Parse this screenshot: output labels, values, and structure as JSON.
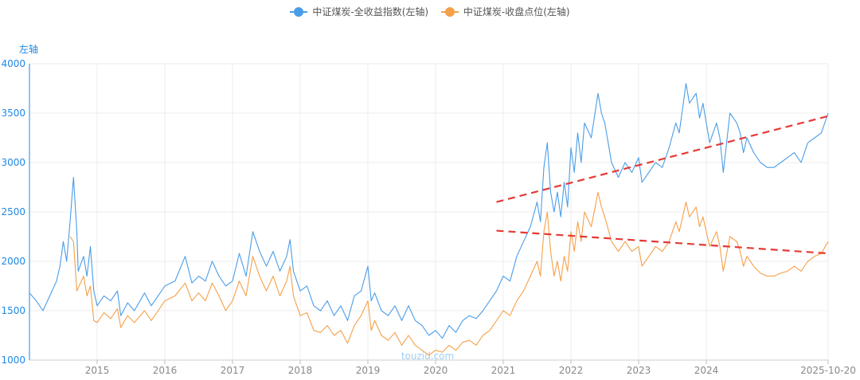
{
  "legend": {
    "series1": "中证煤炭-全收益指数(左轴)",
    "series2": "中证煤炭-收盘点位(左轴)"
  },
  "axis_unit": "左轴",
  "watermark": "touzid.com",
  "colors": {
    "series1": "#4a9de8",
    "series2": "#f5a04a",
    "trend": "#e53935",
    "axis": "#1e88e5"
  },
  "chart_data": {
    "type": "line",
    "x_range": [
      2014.0,
      2025.8
    ],
    "ylim": [
      1000,
      4000
    ],
    "y_ticks": [
      1000,
      1500,
      2000,
      2500,
      3000,
      3500,
      4000
    ],
    "x_ticks": [
      {
        "label": "2015",
        "x": 2015
      },
      {
        "label": "2016",
        "x": 2016
      },
      {
        "label": "2017",
        "x": 2017
      },
      {
        "label": "2018",
        "x": 2018
      },
      {
        "label": "2019",
        "x": 2019
      },
      {
        "label": "2020",
        "x": 2020
      },
      {
        "label": "2021",
        "x": 2021
      },
      {
        "label": "2022",
        "x": 2022
      },
      {
        "label": "2023",
        "x": 2023
      },
      {
        "label": "2024",
        "x": 2024
      },
      {
        "label": "2025-10-20",
        "x": 2025.8
      }
    ],
    "grid": true,
    "legend_position": "top-center",
    "series": [
      {
        "name": "中证煤炭-全收益指数(左轴)",
        "color": "#4a9de8",
        "points": [
          [
            2014.0,
            1680
          ],
          [
            2014.1,
            1600
          ],
          [
            2014.2,
            1500
          ],
          [
            2014.3,
            1650
          ],
          [
            2014.4,
            1800
          ],
          [
            2014.45,
            1950
          ],
          [
            2014.5,
            2200
          ],
          [
            2014.55,
            2000
          ],
          [
            2014.6,
            2400
          ],
          [
            2014.65,
            2850
          ],
          [
            2014.7,
            2300
          ],
          [
            2014.72,
            1900
          ],
          [
            2014.8,
            2050
          ],
          [
            2014.85,
            1850
          ],
          [
            2014.9,
            2150
          ],
          [
            2014.95,
            1700
          ],
          [
            2015.0,
            1550
          ],
          [
            2015.1,
            1650
          ],
          [
            2015.2,
            1600
          ],
          [
            2015.3,
            1700
          ],
          [
            2015.35,
            1450
          ],
          [
            2015.45,
            1580
          ],
          [
            2015.55,
            1500
          ],
          [
            2015.7,
            1680
          ],
          [
            2015.8,
            1550
          ],
          [
            2015.9,
            1650
          ],
          [
            2016.0,
            1750
          ],
          [
            2016.15,
            1800
          ],
          [
            2016.3,
            2050
          ],
          [
            2016.4,
            1780
          ],
          [
            2016.5,
            1850
          ],
          [
            2016.6,
            1800
          ],
          [
            2016.7,
            2000
          ],
          [
            2016.8,
            1850
          ],
          [
            2016.9,
            1750
          ],
          [
            2017.0,
            1800
          ],
          [
            2017.1,
            2080
          ],
          [
            2017.2,
            1850
          ],
          [
            2017.3,
            2300
          ],
          [
            2017.4,
            2100
          ],
          [
            2017.5,
            1950
          ],
          [
            2017.6,
            2100
          ],
          [
            2017.7,
            1900
          ],
          [
            2017.8,
            2050
          ],
          [
            2017.85,
            2220
          ],
          [
            2017.9,
            1900
          ],
          [
            2018.0,
            1700
          ],
          [
            2018.1,
            1750
          ],
          [
            2018.2,
            1550
          ],
          [
            2018.3,
            1500
          ],
          [
            2018.4,
            1600
          ],
          [
            2018.5,
            1450
          ],
          [
            2018.6,
            1550
          ],
          [
            2018.7,
            1400
          ],
          [
            2018.8,
            1650
          ],
          [
            2018.9,
            1700
          ],
          [
            2019.0,
            1950
          ],
          [
            2019.05,
            1600
          ],
          [
            2019.1,
            1680
          ],
          [
            2019.2,
            1500
          ],
          [
            2019.3,
            1450
          ],
          [
            2019.4,
            1550
          ],
          [
            2019.5,
            1400
          ],
          [
            2019.6,
            1550
          ],
          [
            2019.7,
            1400
          ],
          [
            2019.8,
            1350
          ],
          [
            2019.9,
            1250
          ],
          [
            2020.0,
            1300
          ],
          [
            2020.1,
            1220
          ],
          [
            2020.2,
            1350
          ],
          [
            2020.3,
            1280
          ],
          [
            2020.4,
            1400
          ],
          [
            2020.5,
            1450
          ],
          [
            2020.6,
            1420
          ],
          [
            2020.7,
            1500
          ],
          [
            2020.8,
            1600
          ],
          [
            2020.9,
            1700
          ],
          [
            2021.0,
            1850
          ],
          [
            2021.1,
            1800
          ],
          [
            2021.2,
            2050
          ],
          [
            2021.3,
            2200
          ],
          [
            2021.4,
            2350
          ],
          [
            2021.5,
            2600
          ],
          [
            2021.55,
            2400
          ],
          [
            2021.6,
            2950
          ],
          [
            2021.65,
            3200
          ],
          [
            2021.7,
            2700
          ],
          [
            2021.75,
            2500
          ],
          [
            2021.8,
            2700
          ],
          [
            2021.85,
            2450
          ],
          [
            2021.9,
            2800
          ],
          [
            2021.95,
            2550
          ],
          [
            2022.0,
            3150
          ],
          [
            2022.05,
            2900
          ],
          [
            2022.1,
            3300
          ],
          [
            2022.15,
            3000
          ],
          [
            2022.2,
            3400
          ],
          [
            2022.3,
            3250
          ],
          [
            2022.4,
            3700
          ],
          [
            2022.45,
            3500
          ],
          [
            2022.5,
            3400
          ],
          [
            2022.6,
            3000
          ],
          [
            2022.7,
            2850
          ],
          [
            2022.8,
            3000
          ],
          [
            2022.9,
            2900
          ],
          [
            2023.0,
            3050
          ],
          [
            2023.05,
            2800
          ],
          [
            2023.15,
            2900
          ],
          [
            2023.25,
            3000
          ],
          [
            2023.35,
            2950
          ],
          [
            2023.45,
            3150
          ],
          [
            2023.55,
            3400
          ],
          [
            2023.6,
            3300
          ],
          [
            2023.7,
            3800
          ],
          [
            2023.75,
            3600
          ],
          [
            2023.85,
            3700
          ],
          [
            2023.9,
            3450
          ],
          [
            2023.95,
            3600
          ],
          [
            2024.05,
            3200
          ],
          [
            2024.15,
            3400
          ],
          [
            2024.2,
            3250
          ],
          [
            2024.25,
            2900
          ],
          [
            2024.35,
            3500
          ],
          [
            2024.45,
            3400
          ],
          [
            2024.5,
            3300
          ],
          [
            2024.55,
            3100
          ],
          [
            2024.6,
            3250
          ],
          [
            2024.7,
            3100
          ],
          [
            2024.8,
            3000
          ],
          [
            2024.9,
            2950
          ],
          [
            2025.0,
            2950
          ],
          [
            2025.1,
            3000
          ],
          [
            2025.2,
            3050
          ],
          [
            2025.3,
            3100
          ],
          [
            2025.4,
            3000
          ],
          [
            2025.5,
            3200
          ],
          [
            2025.6,
            3250
          ],
          [
            2025.7,
            3300
          ],
          [
            2025.8,
            3500
          ]
        ]
      },
      {
        "name": "中证煤炭-收盘点位(左轴)",
        "color": "#f5a04a",
        "points": [
          [
            2014.6,
            2250
          ],
          [
            2014.65,
            2200
          ],
          [
            2014.7,
            1700
          ],
          [
            2014.8,
            1850
          ],
          [
            2014.85,
            1650
          ],
          [
            2014.9,
            1750
          ],
          [
            2014.95,
            1400
          ],
          [
            2015.0,
            1380
          ],
          [
            2015.1,
            1480
          ],
          [
            2015.2,
            1420
          ],
          [
            2015.3,
            1520
          ],
          [
            2015.35,
            1330
          ],
          [
            2015.45,
            1450
          ],
          [
            2015.55,
            1380
          ],
          [
            2015.7,
            1500
          ],
          [
            2015.8,
            1400
          ],
          [
            2015.9,
            1500
          ],
          [
            2016.0,
            1600
          ],
          [
            2016.15,
            1650
          ],
          [
            2016.3,
            1780
          ],
          [
            2016.4,
            1600
          ],
          [
            2016.5,
            1680
          ],
          [
            2016.6,
            1600
          ],
          [
            2016.7,
            1780
          ],
          [
            2016.8,
            1650
          ],
          [
            2016.9,
            1500
          ],
          [
            2017.0,
            1600
          ],
          [
            2017.1,
            1800
          ],
          [
            2017.2,
            1650
          ],
          [
            2017.3,
            2050
          ],
          [
            2017.4,
            1850
          ],
          [
            2017.5,
            1700
          ],
          [
            2017.6,
            1850
          ],
          [
            2017.7,
            1650
          ],
          [
            2017.8,
            1800
          ],
          [
            2017.85,
            1950
          ],
          [
            2017.9,
            1650
          ],
          [
            2018.0,
            1450
          ],
          [
            2018.1,
            1480
          ],
          [
            2018.2,
            1300
          ],
          [
            2018.3,
            1280
          ],
          [
            2018.4,
            1350
          ],
          [
            2018.5,
            1250
          ],
          [
            2018.6,
            1300
          ],
          [
            2018.7,
            1170
          ],
          [
            2018.8,
            1350
          ],
          [
            2018.9,
            1450
          ],
          [
            2019.0,
            1600
          ],
          [
            2019.05,
            1300
          ],
          [
            2019.1,
            1400
          ],
          [
            2019.2,
            1250
          ],
          [
            2019.3,
            1200
          ],
          [
            2019.4,
            1280
          ],
          [
            2019.5,
            1150
          ],
          [
            2019.6,
            1250
          ],
          [
            2019.7,
            1150
          ],
          [
            2019.8,
            1100
          ],
          [
            2019.9,
            1050
          ],
          [
            2020.0,
            1100
          ],
          [
            2020.1,
            1080
          ],
          [
            2020.2,
            1150
          ],
          [
            2020.3,
            1100
          ],
          [
            2020.4,
            1180
          ],
          [
            2020.5,
            1200
          ],
          [
            2020.6,
            1150
          ],
          [
            2020.7,
            1250
          ],
          [
            2020.8,
            1300
          ],
          [
            2020.9,
            1400
          ],
          [
            2021.0,
            1500
          ],
          [
            2021.1,
            1450
          ],
          [
            2021.2,
            1600
          ],
          [
            2021.3,
            1700
          ],
          [
            2021.4,
            1850
          ],
          [
            2021.5,
            2000
          ],
          [
            2021.55,
            1850
          ],
          [
            2021.6,
            2300
          ],
          [
            2021.65,
            2500
          ],
          [
            2021.7,
            2100
          ],
          [
            2021.75,
            1850
          ],
          [
            2021.8,
            2000
          ],
          [
            2021.85,
            1800
          ],
          [
            2021.9,
            2050
          ],
          [
            2021.95,
            1900
          ],
          [
            2022.0,
            2300
          ],
          [
            2022.05,
            2100
          ],
          [
            2022.1,
            2400
          ],
          [
            2022.15,
            2200
          ],
          [
            2022.2,
            2500
          ],
          [
            2022.3,
            2350
          ],
          [
            2022.4,
            2700
          ],
          [
            2022.45,
            2550
          ],
          [
            2022.5,
            2450
          ],
          [
            2022.6,
            2200
          ],
          [
            2022.7,
            2100
          ],
          [
            2022.8,
            2200
          ],
          [
            2022.9,
            2100
          ],
          [
            2023.0,
            2150
          ],
          [
            2023.05,
            1950
          ],
          [
            2023.15,
            2050
          ],
          [
            2023.25,
            2150
          ],
          [
            2023.35,
            2100
          ],
          [
            2023.45,
            2200
          ],
          [
            2023.55,
            2400
          ],
          [
            2023.6,
            2300
          ],
          [
            2023.7,
            2600
          ],
          [
            2023.75,
            2450
          ],
          [
            2023.85,
            2550
          ],
          [
            2023.9,
            2350
          ],
          [
            2023.95,
            2450
          ],
          [
            2024.05,
            2150
          ],
          [
            2024.15,
            2300
          ],
          [
            2024.2,
            2150
          ],
          [
            2024.25,
            1900
          ],
          [
            2024.35,
            2250
          ],
          [
            2024.45,
            2200
          ],
          [
            2024.5,
            2100
          ],
          [
            2024.55,
            1950
          ],
          [
            2024.6,
            2050
          ],
          [
            2024.7,
            1950
          ],
          [
            2024.8,
            1880
          ],
          [
            2024.9,
            1850
          ],
          [
            2025.0,
            1850
          ],
          [
            2025.1,
            1880
          ],
          [
            2025.2,
            1900
          ],
          [
            2025.3,
            1950
          ],
          [
            2025.4,
            1900
          ],
          [
            2025.5,
            2000
          ],
          [
            2025.6,
            2050
          ],
          [
            2025.7,
            2080
          ],
          [
            2025.8,
            2200
          ]
        ]
      }
    ],
    "trendlines": [
      {
        "from": [
          2020.9,
          2600
        ],
        "to": [
          2025.8,
          3470
        ]
      },
      {
        "from": [
          2020.9,
          2310
        ],
        "to": [
          2025.8,
          2080
        ]
      }
    ]
  }
}
